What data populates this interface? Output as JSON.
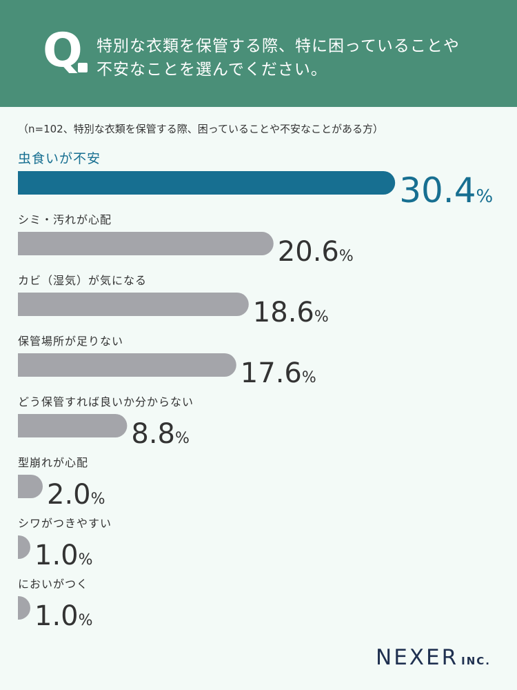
{
  "header": {
    "q_label": "Q",
    "question_line1": "特別な衣類を保管する際、特に困っていることや",
    "question_line2": "不安なことを選んでください。"
  },
  "note": "（n=102、特別な衣類を保管する際、困っていることや不安なことがある方）",
  "logo": {
    "main": "NEXER",
    "suffix": "INC."
  },
  "colors": {
    "header_bg": "#4a8f78",
    "highlight": "#176f91",
    "bar_gray": "#a4a5aa",
    "value_text": "#333333",
    "background": "#f3faf7"
  },
  "chart_data": {
    "type": "bar",
    "orientation": "horizontal",
    "unit": "%",
    "categories": [
      "虫食いが不安",
      "シミ・汚れが心配",
      "カビ（湿気）が気になる",
      "保管場所が足りない",
      "どう保管すれば良いか分からない",
      "型崩れが心配",
      "シワがつきやすい",
      "においがつく"
    ],
    "values": [
      30.4,
      20.6,
      18.6,
      17.6,
      8.8,
      2.0,
      1.0,
      1.0
    ],
    "value_labels": [
      "30.4",
      "20.6",
      "18.6",
      "17.6",
      "8.8",
      "2.0",
      "1.0",
      "1.0"
    ],
    "highlight_index": 0,
    "title": "",
    "xlabel": "",
    "ylabel": ""
  }
}
